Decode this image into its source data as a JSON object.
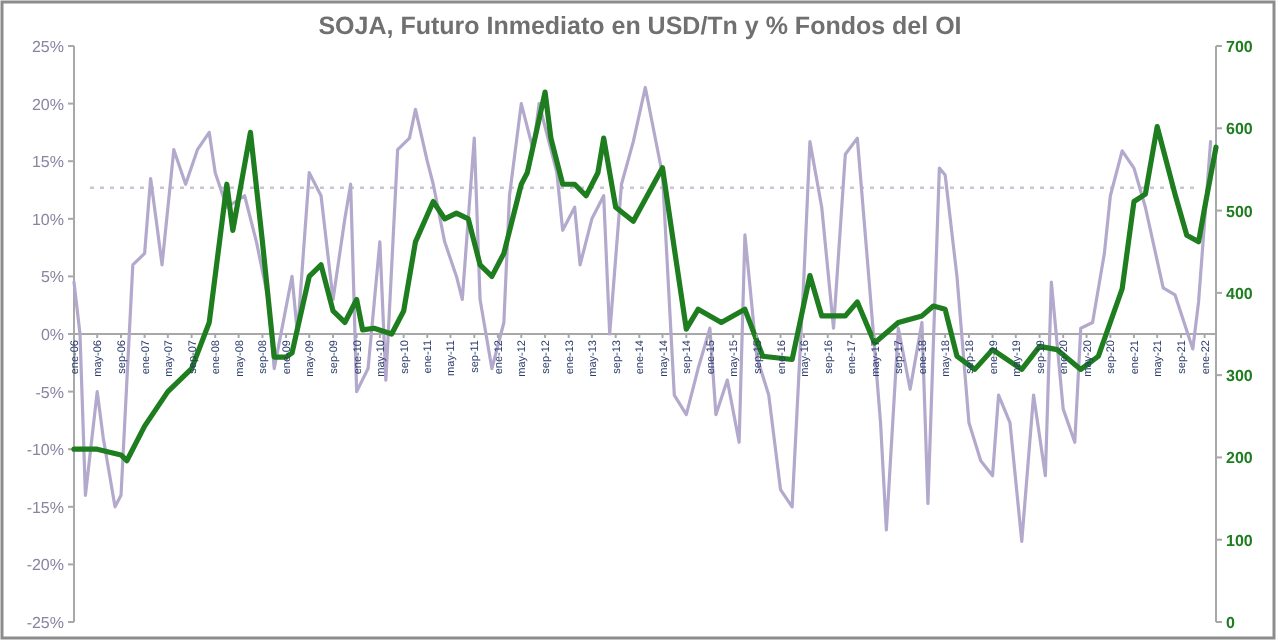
{
  "chart_data": {
    "type": "line",
    "title": "SOJA, Futuro Inmediato en USD/Tn y % Fondos del OI",
    "xlim": [
      "2006-01",
      "2022-03"
    ],
    "xticks": [
      {
        "value": "2006-01",
        "label": "ene-06"
      },
      {
        "value": "2006-05",
        "label": "may-06"
      },
      {
        "value": "2006-09",
        "label": "sep-06"
      },
      {
        "value": "2007-01",
        "label": "ene-07"
      },
      {
        "value": "2007-05",
        "label": "may-07"
      },
      {
        "value": "2007-09",
        "label": "sep-07"
      },
      {
        "value": "2008-01",
        "label": "ene-08"
      },
      {
        "value": "2008-05",
        "label": "may-08"
      },
      {
        "value": "2008-09",
        "label": "sep-08"
      },
      {
        "value": "2009-01",
        "label": "ene-09"
      },
      {
        "value": "2009-05",
        "label": "may-09"
      },
      {
        "value": "2009-09",
        "label": "sep-09"
      },
      {
        "value": "2010-01",
        "label": "ene-10"
      },
      {
        "value": "2010-05",
        "label": "may-10"
      },
      {
        "value": "2010-09",
        "label": "sep-10"
      },
      {
        "value": "2011-01",
        "label": "ene-11"
      },
      {
        "value": "2011-05",
        "label": "may-11"
      },
      {
        "value": "2011-09",
        "label": "sep-11"
      },
      {
        "value": "2012-01",
        "label": "ene-12"
      },
      {
        "value": "2012-05",
        "label": "may-12"
      },
      {
        "value": "2012-09",
        "label": "sep-12"
      },
      {
        "value": "2013-01",
        "label": "ene-13"
      },
      {
        "value": "2013-05",
        "label": "may-13"
      },
      {
        "value": "2013-09",
        "label": "sep-13"
      },
      {
        "value": "2014-01",
        "label": "ene-14"
      },
      {
        "value": "2014-05",
        "label": "may-14"
      },
      {
        "value": "2014-09",
        "label": "sep-14"
      },
      {
        "value": "2015-01",
        "label": "ene-15"
      },
      {
        "value": "2015-05",
        "label": "may-15"
      },
      {
        "value": "2015-09",
        "label": "sep-15"
      },
      {
        "value": "2016-01",
        "label": "ene-16"
      },
      {
        "value": "2016-05",
        "label": "may-16"
      },
      {
        "value": "2016-09",
        "label": "sep-16"
      },
      {
        "value": "2017-01",
        "label": "ene-17"
      },
      {
        "value": "2017-05",
        "label": "may-17"
      },
      {
        "value": "2017-09",
        "label": "sep-17"
      },
      {
        "value": "2018-01",
        "label": "ene-18"
      },
      {
        "value": "2018-05",
        "label": "may-18"
      },
      {
        "value": "2018-09",
        "label": "sep-18"
      },
      {
        "value": "2019-01",
        "label": "ene-19"
      },
      {
        "value": "2019-05",
        "label": "may-19"
      },
      {
        "value": "2019-09",
        "label": "sep-19"
      },
      {
        "value": "2020-01",
        "label": "ene-20"
      },
      {
        "value": "2020-05",
        "label": "may-20"
      },
      {
        "value": "2020-09",
        "label": "sep-20"
      },
      {
        "value": "2021-01",
        "label": "ene-21"
      },
      {
        "value": "2021-05",
        "label": "may-21"
      },
      {
        "value": "2021-09",
        "label": "sep-21"
      },
      {
        "value": "2022-01",
        "label": "ene-22"
      }
    ],
    "ylim": [
      -25,
      25
    ],
    "yticks": [
      {
        "value": -25,
        "label": "-25%"
      },
      {
        "value": -20,
        "label": "-20%"
      },
      {
        "value": -15,
        "label": "-15%"
      },
      {
        "value": -10,
        "label": "-10%"
      },
      {
        "value": -5,
        "label": "-5%"
      },
      {
        "value": 0,
        "label": "0%"
      },
      {
        "value": 5,
        "label": "5%"
      },
      {
        "value": 10,
        "label": "10%"
      },
      {
        "value": 15,
        "label": "15%"
      },
      {
        "value": 20,
        "label": "20%"
      },
      {
        "value": 25,
        "label": "25%"
      }
    ],
    "y2lim": [
      0,
      700
    ],
    "y2ticks": [
      0,
      100,
      200,
      300,
      400,
      500,
      600,
      700
    ],
    "grid": false,
    "ref_lines": [
      {
        "axis": "y",
        "value": 12.7,
        "color": "#c8c4d4",
        "line_style": "dotted"
      }
    ],
    "series": [
      {
        "color": "#b3a9cc",
        "axis": "y",
        "x": [
          "2006-01",
          "2006-02",
          "2006-03",
          "2006-05",
          "2006-06",
          "2006-08",
          "2006-09",
          "2006-11",
          "2007-01",
          "2007-02",
          "2007-03",
          "2007-04",
          "2007-06",
          "2007-08",
          "2007-10",
          "2007-12",
          "2008-01",
          "2008-03",
          "2008-06",
          "2008-08",
          "2008-10",
          "2008-11",
          "2009-02",
          "2009-03",
          "2009-05",
          "2009-07",
          "2009-09",
          "2009-11",
          "2009-12",
          "2010-01",
          "2010-03",
          "2010-05",
          "2010-06",
          "2010-08",
          "2010-10",
          "2010-11",
          "2011-01",
          "2011-02",
          "2011-04",
          "2011-06",
          "2011-07",
          "2011-09",
          "2011-10",
          "2011-12",
          "2012-02",
          "2012-03",
          "2012-05",
          "2012-07",
          "2012-08",
          "2012-11",
          "2012-12",
          "2013-02",
          "2013-03",
          "2013-05",
          "2013-07",
          "2013-08",
          "2013-10",
          "2013-12",
          "2014-02",
          "2014-05",
          "2014-07",
          "2014-09",
          "2014-11",
          "2015-01",
          "2015-02",
          "2015-04",
          "2015-06",
          "2015-07",
          "2015-09",
          "2015-11",
          "2016-01",
          "2016-03",
          "2016-05",
          "2016-06",
          "2016-08",
          "2016-10",
          "2016-12",
          "2017-02",
          "2017-04",
          "2017-06",
          "2017-07",
          "2017-09",
          "2017-11",
          "2018-01",
          "2018-02",
          "2018-04",
          "2018-05",
          "2018-07",
          "2018-09",
          "2018-11",
          "2019-01",
          "2019-02",
          "2019-04",
          "2019-06",
          "2019-08",
          "2019-10",
          "2019-11",
          "2020-01",
          "2020-03",
          "2020-04",
          "2020-06",
          "2020-08",
          "2020-09",
          "2020-11",
          "2021-01",
          "2021-03",
          "2021-06",
          "2021-08",
          "2021-11",
          "2021-12",
          "2022-02"
        ],
        "values": [
          4.5,
          0,
          -14,
          -5,
          -9,
          -15,
          -14,
          6,
          7,
          13.5,
          10,
          6,
          16,
          13,
          16,
          17.5,
          14,
          11,
          12,
          8,
          3,
          -3,
          5,
          0,
          14,
          12,
          3,
          10,
          13,
          -5,
          -3,
          8,
          -4,
          16,
          17,
          19.5,
          15,
          13,
          8,
          5,
          3,
          17,
          3,
          -3,
          1,
          12,
          20,
          16,
          20,
          14,
          9,
          11,
          6,
          10,
          12,
          0,
          13,
          16.7,
          21.4,
          13.8,
          -5.3,
          -7,
          -3,
          0.5,
          -7,
          -4,
          -9.4,
          8.6,
          -2,
          -5.3,
          -13.5,
          -15,
          5,
          16.7,
          11,
          0.5,
          15.6,
          17,
          5,
          -7.7,
          -17,
          0.5,
          -4.8,
          1,
          -14.7,
          14.4,
          13.8,
          5,
          -7.7,
          -11,
          -12.3,
          -5.3,
          -7.7,
          -18,
          -5.3,
          -12.3,
          4.5,
          -6.5,
          -9.4,
          0.5,
          1,
          7,
          12,
          15.9,
          14.4,
          11,
          4,
          3.4,
          -1.3,
          2.8,
          16.7
        ]
      },
      {
        "color": "#1e7d1e",
        "axis": "y2",
        "x": [
          "2006-01",
          "2006-05",
          "2006-09",
          "2006-10",
          "2007-01",
          "2007-05",
          "2007-09",
          "2007-12",
          "2008-03",
          "2008-04",
          "2008-07",
          "2008-09",
          "2008-11",
          "2009-01",
          "2009-02",
          "2009-05",
          "2009-07",
          "2009-09",
          "2009-11",
          "2010-01",
          "2010-02",
          "2010-04",
          "2010-07",
          "2010-09",
          "2010-11",
          "2011-02",
          "2011-04",
          "2011-06",
          "2011-08",
          "2011-10",
          "2011-12",
          "2012-02",
          "2012-05",
          "2012-06",
          "2012-09",
          "2012-10",
          "2012-12",
          "2013-02",
          "2013-04",
          "2013-06",
          "2013-07",
          "2013-09",
          "2013-12",
          "2014-05",
          "2014-07",
          "2014-09",
          "2014-11",
          "2015-03",
          "2015-07",
          "2015-10",
          "2016-03",
          "2016-06",
          "2016-08",
          "2016-12",
          "2017-02",
          "2017-05",
          "2017-09",
          "2018-01",
          "2018-03",
          "2018-05",
          "2018-07",
          "2018-10",
          "2019-01",
          "2019-06",
          "2019-09",
          "2019-12",
          "2020-04",
          "2020-07",
          "2020-11",
          "2021-01",
          "2021-03",
          "2021-05",
          "2021-08",
          "2021-10",
          "2021-12",
          "2022-01",
          "2022-03"
        ],
        "values": [
          210,
          210,
          203,
          196,
          238,
          280,
          308,
          364,
          532,
          476,
          595,
          462,
          322,
          322,
          327,
          420,
          434,
          378,
          364,
          392,
          355,
          357,
          350,
          378,
          462,
          511,
          490,
          497,
          490,
          434,
          420,
          448,
          532,
          546,
          644,
          588,
          532,
          532,
          518,
          546,
          588,
          504,
          487,
          552,
          454,
          356,
          380,
          364,
          380,
          323,
          319,
          421,
          372,
          372,
          389,
          339,
          364,
          372,
          384,
          380,
          323,
          307,
          331,
          307,
          335,
          331,
          307,
          323,
          405,
          511,
          520,
          602,
          520,
          470,
          462,
          503,
          577
        ]
      }
    ]
  }
}
